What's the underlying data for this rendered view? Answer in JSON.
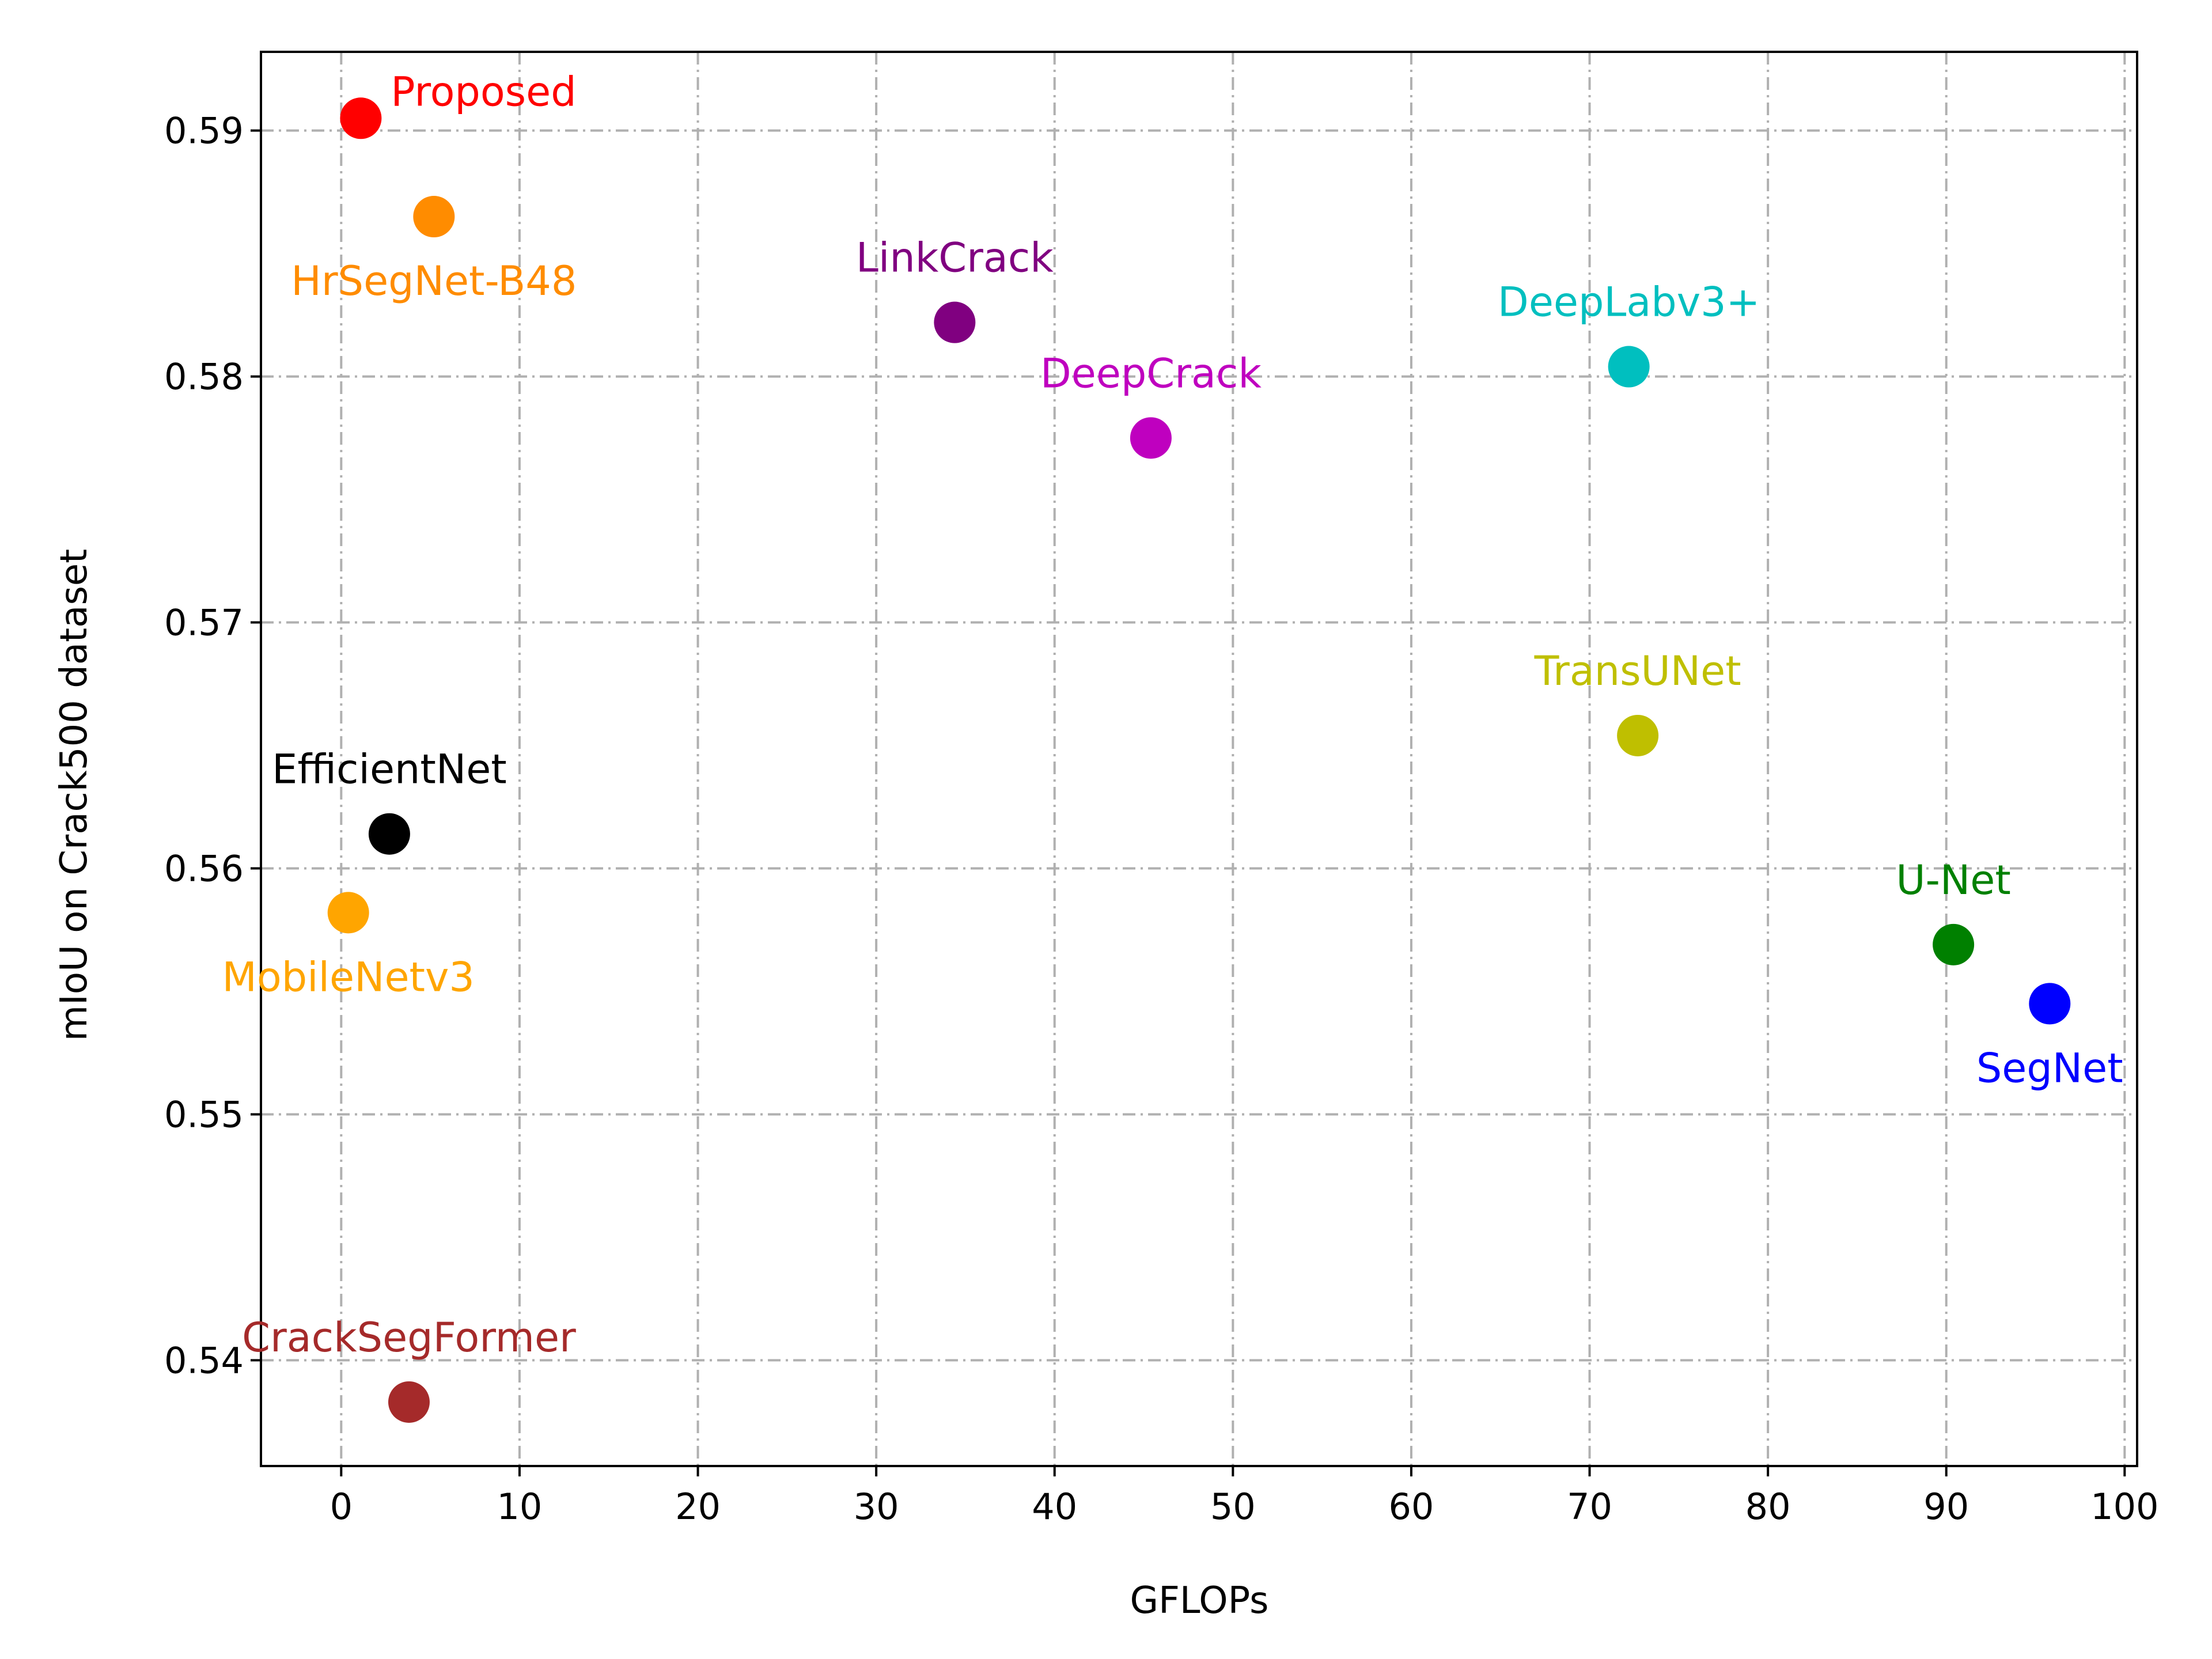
{
  "chart_data": {
    "type": "scatter",
    "title": "",
    "xlabel": "GFLOPs",
    "ylabel": "mIoU on Crack500 dataset",
    "xlim": [
      -4.5,
      100.7
    ],
    "ylim": [
      0.5357,
      0.5932
    ],
    "x_ticks": [
      0,
      10,
      20,
      30,
      40,
      50,
      60,
      70,
      80,
      90,
      100
    ],
    "y_ticks": [
      0.54,
      0.55,
      0.56,
      0.57,
      0.58,
      0.59
    ],
    "x_tick_labels": [
      "0",
      "10",
      "20",
      "30",
      "40",
      "50",
      "60",
      "70",
      "80",
      "90",
      "100"
    ],
    "y_tick_labels": [
      "0.54",
      "0.55",
      "0.56",
      "0.57",
      "0.58",
      "0.59"
    ],
    "grid": true,
    "legend": "none",
    "points": [
      {
        "label": "Proposed",
        "x": 1.1,
        "y": 0.5905,
        "color": "#ff0000",
        "label_pos": "upper-right"
      },
      {
        "label": "HrSegNet-B48",
        "x": 5.2,
        "y": 0.5865,
        "color": "#ff8c00",
        "label_pos": "below"
      },
      {
        "label": "LinkCrack",
        "x": 34.4,
        "y": 0.5822,
        "color": "#800080",
        "label_pos": "above"
      },
      {
        "label": "DeepCrack",
        "x": 45.4,
        "y": 0.5775,
        "color": "#bf00bf",
        "label_pos": "above"
      },
      {
        "label": "DeepLabv3+",
        "x": 72.2,
        "y": 0.5804,
        "color": "#00bfbf",
        "label_pos": "above"
      },
      {
        "label": "TransUNet",
        "x": 72.7,
        "y": 0.5654,
        "color": "#bfbf00",
        "label_pos": "above"
      },
      {
        "label": "EfficientNet",
        "x": 2.7,
        "y": 0.5614,
        "color": "#000000",
        "label_pos": "above"
      },
      {
        "label": "MobileNetv3",
        "x": 0.4,
        "y": 0.5582,
        "color": "#ffa500",
        "label_pos": "below"
      },
      {
        "label": "U-Net",
        "x": 90.4,
        "y": 0.5569,
        "color": "#008000",
        "label_pos": "above"
      },
      {
        "label": "SegNet",
        "x": 95.8,
        "y": 0.5545,
        "color": "#0000ff",
        "label_pos": "below"
      },
      {
        "label": "CrackSegFormer",
        "x": 3.8,
        "y": 0.5383,
        "color": "#a52a2a",
        "label_pos": "above"
      }
    ]
  }
}
